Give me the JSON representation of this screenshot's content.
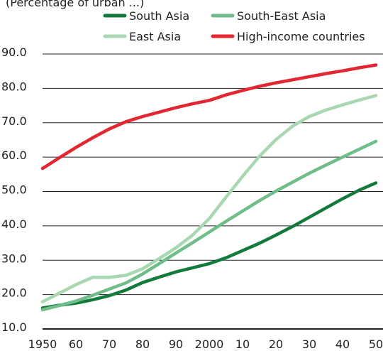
{
  "subtitle": "(Percentage of urban ...)",
  "chart_data": {
    "type": "line",
    "x": [
      1950,
      1955,
      1960,
      1965,
      1970,
      1975,
      1980,
      1985,
      1990,
      1995,
      2000,
      2005,
      2010,
      2015,
      2020,
      2025,
      2030,
      2035,
      2040,
      2045,
      2050
    ],
    "x_tick_labels": [
      "1950",
      "60",
      "70",
      "80",
      "90",
      "2000",
      "10",
      "20",
      "30",
      "40",
      "50"
    ],
    "x_tick_values": [
      1950,
      1960,
      1970,
      1980,
      1990,
      2000,
      2010,
      2020,
      2030,
      2040,
      2050
    ],
    "y_tick_labels": [
      "10.0",
      "20.0",
      "30.0",
      "40.0",
      "50.0",
      "60.0",
      "70.0",
      "80.0",
      "90.0"
    ],
    "y_tick_values": [
      10,
      20,
      30,
      40,
      50,
      60,
      70,
      80,
      90
    ],
    "ylim": [
      10,
      90
    ],
    "xlim": [
      1950,
      2050
    ],
    "grid": true,
    "legend_position": "top",
    "series": [
      {
        "name": "South Asia",
        "color": "#127a3a",
        "values": [
          16.1,
          16.9,
          17.5,
          18.5,
          19.7,
          21.3,
          23.5,
          25.1,
          26.6,
          27.8,
          29.0,
          30.7,
          32.8,
          34.9,
          37.3,
          39.8,
          42.5,
          45.2,
          47.9,
          50.4,
          52.5
        ]
      },
      {
        "name": "South-East Asia",
        "color": "#6fbe89",
        "values": [
          15.6,
          16.8,
          18.1,
          19.8,
          21.6,
          23.4,
          26.0,
          29.0,
          32.1,
          35.1,
          38.2,
          41.3,
          44.3,
          47.3,
          50.1,
          52.7,
          55.3,
          57.7,
          60.0,
          62.3,
          64.6
        ]
      },
      {
        "name": "East Asia",
        "color": "#a8d8b2",
        "values": [
          17.9,
          20.4,
          22.9,
          25.0,
          25.0,
          25.6,
          27.5,
          30.5,
          33.6,
          37.3,
          42.1,
          48.3,
          54.4,
          60.2,
          65.1,
          69.0,
          71.8,
          73.7,
          75.2,
          76.6,
          77.9
        ]
      },
      {
        "name": "High-income countries",
        "color": "#e3262f",
        "values": [
          56.7,
          59.8,
          62.8,
          65.6,
          68.2,
          70.3,
          71.8,
          73.1,
          74.4,
          75.5,
          76.5,
          78.1,
          79.4,
          80.6,
          81.6,
          82.5,
          83.4,
          84.3,
          85.1,
          86.0,
          86.8
        ]
      }
    ]
  }
}
